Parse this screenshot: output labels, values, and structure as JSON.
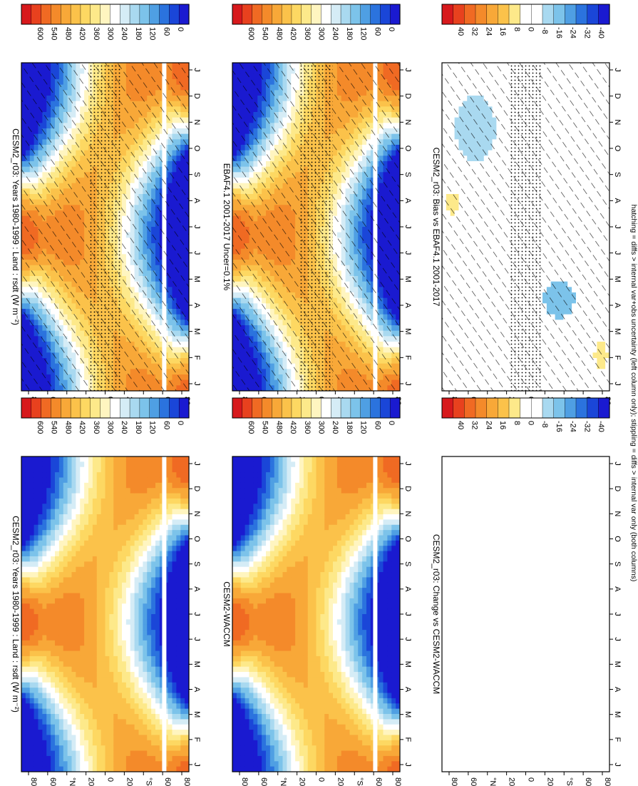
{
  "footnote": "hatching = diffs > internal var+obs uncertainty (left column only); stippling = diffs > internal var only (both columns)",
  "month_labels": [
    "J",
    "F",
    "M",
    "A",
    "M",
    "J",
    "J",
    "A",
    "S",
    "O",
    "N",
    "D",
    "J"
  ],
  "lat_labels": [
    "80",
    "60",
    "°N",
    "20",
    "0",
    "20",
    "°S",
    "60",
    "80"
  ],
  "abs_colorbar": {
    "labels": [
      "600",
      "540",
      "480",
      "420",
      "360",
      "300",
      "240",
      "180",
      "120",
      "60",
      "0"
    ],
    "colors": [
      "#d7191c",
      "#e8411e",
      "#f06a23",
      "#f48a2a",
      "#f8a838",
      "#fbc24a",
      "#fdd862",
      "#fde98a",
      "#fff5c0",
      "#ffffff",
      "#d5ecf6",
      "#a9d9f0",
      "#7cc3ea",
      "#4f9fe3",
      "#2b73de",
      "#1a46d8",
      "#1a1ad0"
    ]
  },
  "diff_colorbar": {
    "labels": [
      "40",
      "32",
      "24",
      "16",
      "8",
      "0",
      "-8",
      "-16",
      "-24",
      "-32",
      "-40"
    ],
    "colors": [
      "#d7191c",
      "#e8411e",
      "#f06a23",
      "#f48a2a",
      "#f8a838",
      "#fbc24a",
      "#fde98a",
      "#ffffff",
      "#ffffff",
      "#a9d9f0",
      "#7cc3ea",
      "#4f9fe3",
      "#2b73de",
      "#1a46d8",
      "#1a1ad0"
    ]
  },
  "chart_data": [
    {
      "id": "p1",
      "type": "heatmap",
      "title": "CESM2_r03: Years 1980-1999 : Land : rsdt (W m⁻²)",
      "x": "month",
      "y": "latitude",
      "kind": "abs",
      "hatch": true,
      "stipple": true,
      "colorbar": "abs_colorbar"
    },
    {
      "id": "p2",
      "type": "heatmap",
      "title": "CESM2_r03: Years 1980-1999 : Land : rsdt (W m⁻²)",
      "x": "month",
      "y": "latitude",
      "kind": "abs",
      "hatch": false,
      "stipple": false,
      "colorbar": "abs_colorbar"
    },
    {
      "id": "p3",
      "type": "heatmap",
      "title": "EBAF4.1 2001-2017 Uncer=0.1%",
      "x": "month",
      "y": "latitude",
      "kind": "abs",
      "hatch": true,
      "stipple": true,
      "colorbar": "abs_colorbar"
    },
    {
      "id": "p4",
      "type": "heatmap",
      "title": "CESM2-WACCM",
      "x": "month",
      "y": "latitude",
      "kind": "abs",
      "hatch": false,
      "stipple": false,
      "colorbar": "abs_colorbar"
    },
    {
      "id": "p5",
      "type": "heatmap",
      "title": "CESM2_r03: Bias vs EBAF4.1 2001-2017",
      "x": "month",
      "y": "latitude",
      "kind": "bias",
      "hatch": true,
      "stipple": true,
      "colorbar": "diff_colorbar"
    },
    {
      "id": "p6",
      "type": "heatmap",
      "title": "CESM2_r03: Change vs CESM2-WACCM",
      "x": "month",
      "y": "latitude",
      "kind": "blank",
      "hatch": false,
      "stipple": false,
      "colorbar": "diff_colorbar"
    }
  ]
}
